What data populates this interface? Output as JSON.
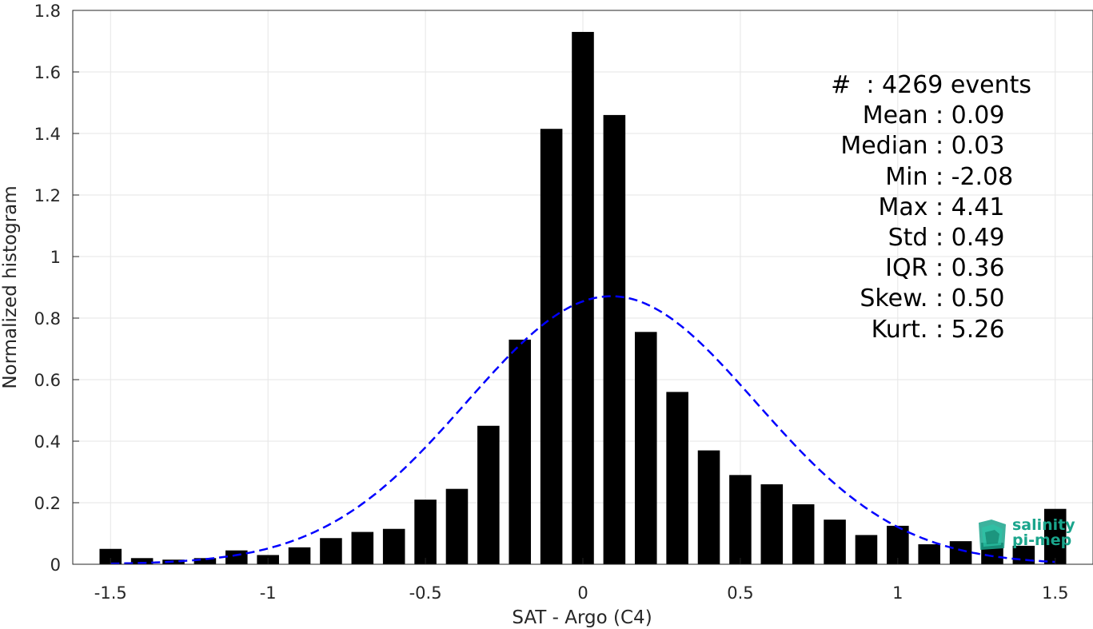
{
  "chart_data": {
    "type": "bar",
    "xlabel": "SAT - Argo (C4)",
    "ylabel": "Normalized histogram",
    "xlim": [
      -1.62,
      1.62
    ],
    "ylim": [
      0,
      1.8
    ],
    "xticks": [
      -1.5,
      -1,
      -0.5,
      0,
      0.5,
      1,
      1.5
    ],
    "xtick_labels": [
      "-1.5",
      "-1",
      "-0.5",
      "0",
      "0.5",
      "1",
      "1.5"
    ],
    "yticks": [
      0,
      0.2,
      0.4,
      0.6,
      0.8,
      1,
      1.2,
      1.4,
      1.6,
      1.8
    ],
    "ytick_labels": [
      "0",
      "0.2",
      "0.4",
      "0.6",
      "0.8",
      "1",
      "1.2",
      "1.4",
      "1.6",
      "1.8"
    ],
    "grid": true,
    "bar_color": "#000000",
    "bins": [
      -1.5,
      -1.4,
      -1.3,
      -1.2,
      -1.1,
      -1.0,
      -0.9,
      -0.8,
      -0.7,
      -0.6,
      -0.5,
      -0.4,
      -0.3,
      -0.2,
      -0.1,
      0.0,
      0.1,
      0.2,
      0.3,
      0.4,
      0.5,
      0.6,
      0.7,
      0.8,
      0.9,
      1.0,
      1.1,
      1.2,
      1.3,
      1.4,
      1.5
    ],
    "values": [
      0.05,
      0.02,
      0.015,
      0.02,
      0.045,
      0.03,
      0.055,
      0.085,
      0.105,
      0.115,
      0.21,
      0.245,
      0.45,
      0.73,
      1.415,
      1.73,
      1.46,
      0.755,
      0.56,
      0.37,
      0.29,
      0.26,
      0.195,
      0.145,
      0.095,
      0.125,
      0.065,
      0.075,
      0.07,
      0.06,
      0.18
    ],
    "fit": {
      "type": "normal",
      "style": "dashed",
      "color": "#0000ff",
      "mean": 0.09,
      "std": 0.458
    }
  },
  "stats": [
    {
      "key": "#  ",
      "value": ": 4269 events"
    },
    {
      "key": "Mean ",
      "value": ": 0.09"
    },
    {
      "key": "Median ",
      "value": ": 0.03"
    },
    {
      "key": "Min ",
      "value": ": -2.08"
    },
    {
      "key": "Max ",
      "value": ": 4.41"
    },
    {
      "key": "Std ",
      "value": ": 0.49"
    },
    {
      "key": "IQR ",
      "value": ": 0.36"
    },
    {
      "key": "Skew. ",
      "value": ": 0.50"
    },
    {
      "key": "Kurt. ",
      "value": ": 5.26"
    }
  ],
  "logo": {
    "line1": "salinity",
    "line2": "pi-mep",
    "color": "#1aa58c"
  }
}
